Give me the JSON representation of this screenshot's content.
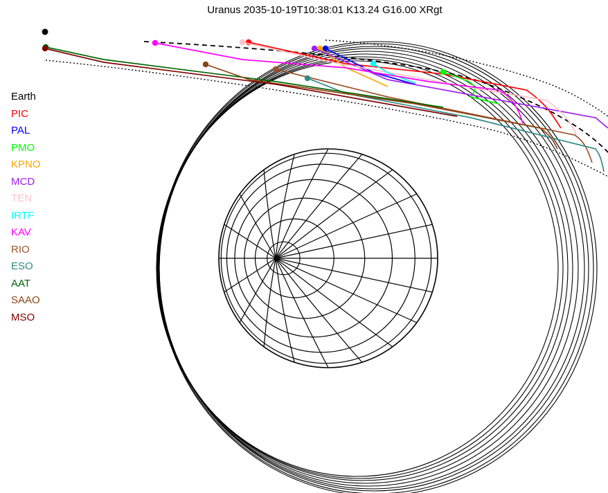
{
  "title": "Uranus 2035-10-19T10:38:01  K13.24  G16.00 XRgt",
  "legend": [
    {
      "label": "Earth",
      "color": "#000000"
    },
    {
      "label": "PIC",
      "color": "#ff0000"
    },
    {
      "label": "PAL",
      "color": "#0000ff"
    },
    {
      "label": "PMO",
      "color": "#00ff00"
    },
    {
      "label": "KPNO",
      "color": "#ffa500"
    },
    {
      "label": "MCD",
      "color": "#a020f0"
    },
    {
      "label": "TEN",
      "color": "#ffc0cb"
    },
    {
      "label": "IRTF",
      "color": "#00ffff"
    },
    {
      "label": "KAV",
      "color": "#ff00ff"
    },
    {
      "label": "RIO",
      "color": "#a0522d"
    },
    {
      "label": "ESO",
      "color": "#2e8b87"
    },
    {
      "label": "AAT",
      "color": "#006400"
    },
    {
      "label": "SAAO",
      "color": "#8b4513"
    },
    {
      "label": "MSO",
      "color": "#800000"
    }
  ]
}
